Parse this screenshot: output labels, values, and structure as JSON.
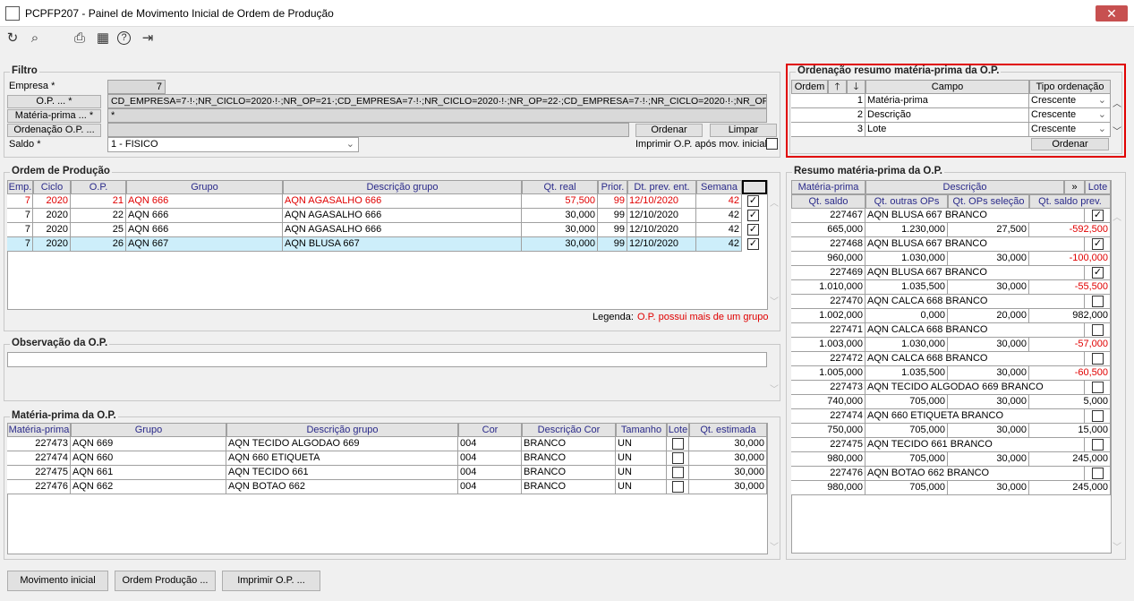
{
  "window": {
    "title": "PCPFP207 - Painel de Movimento Inicial de Ordem de Produção",
    "close": "✕"
  },
  "toolbar": {
    "refresh": "↻",
    "search": "⌕",
    "print": "⎙",
    "calendar": "▦",
    "help": "?",
    "exit": "⇥"
  },
  "filtro": {
    "legend": "Filtro",
    "empresa_label": "Empresa *",
    "empresa_value": "7",
    "op_button": "O.P. ... *",
    "op_value": "CD_EMPRESA=7·!·;NR_CICLO=2020·!·;NR_OP=21·;CD_EMPRESA=7·!·;NR_CICLO=2020·!·;NR_OP=22·;CD_EMPRESA=7·!·;NR_CICLO=2020·!·;NR_OP=23·;CD",
    "mp_button": "Matéria-prima ... *",
    "mp_value": "*",
    "ord_button": "Ordenação O.P. ...",
    "ord_value": "",
    "ordenar": "Ordenar",
    "limpar": "Limpar",
    "saldo_label": "Saldo *",
    "saldo_value": "1 - FISICO",
    "imprimir_label": "Imprimir O.P. após mov. inicial",
    "imprimir_checked": false
  },
  "ordenacao": {
    "legend": "Ordenação resumo matéria-prima da O.P.",
    "headers": [
      "Ordem",
      "🡑",
      "🡓",
      "Campo",
      "Tipo ordenação"
    ],
    "rows": [
      {
        "ordem": "1",
        "campo": "Matéria-prima",
        "tipo": "Crescente"
      },
      {
        "ordem": "2",
        "campo": "Descrição",
        "tipo": "Crescente"
      },
      {
        "ordem": "3",
        "campo": "Lote",
        "tipo": "Crescente"
      }
    ],
    "ordenar": "Ordenar"
  },
  "op": {
    "legend": "Ordem de Produção",
    "headers": [
      "Emp.",
      "Ciclo",
      "O.P.",
      "Grupo",
      "Descrição grupo",
      "Qt. real",
      "Prior.",
      "Dt. prev. ent.",
      "Semana"
    ],
    "rows": [
      {
        "cells": [
          "7",
          "2020",
          "21",
          "AQN 666",
          "AQN AGASALHO 666",
          "57,500",
          "99",
          "12/10/2020",
          "42"
        ],
        "checked": true,
        "red": true
      },
      {
        "cells": [
          "7",
          "2020",
          "22",
          "AQN 666",
          "AQN AGASALHO 666",
          "30,000",
          "99",
          "12/10/2020",
          "42"
        ],
        "checked": true
      },
      {
        "cells": [
          "7",
          "2020",
          "25",
          "AQN 666",
          "AQN AGASALHO 666",
          "30,000",
          "99",
          "12/10/2020",
          "42"
        ],
        "checked": true
      },
      {
        "cells": [
          "7",
          "2020",
          "26",
          "AQN 667",
          "AQN BLUSA 667",
          "30,000",
          "99",
          "12/10/2020",
          "42"
        ],
        "checked": true,
        "selected": true
      }
    ],
    "legenda_label": "Legenda:",
    "legenda_text": "O.P. possui mais de um grupo",
    "legend_color": "#e00000"
  },
  "obs": {
    "legend": "Observação da O.P.",
    "value": ""
  },
  "mp": {
    "legend": "Matéria-prima da O.P.",
    "headers": [
      "Matéria-prima",
      "Grupo",
      "Descrição grupo",
      "Cor",
      "Descrição Cor",
      "Tamanho",
      "Lote",
      "Qt. estimada"
    ],
    "rows": [
      {
        "cells": [
          "227473",
          "AQN 669",
          "AQN TECIDO ALGODAO 669",
          "004",
          "BRANCO",
          "UN"
        ],
        "lote": false,
        "qt": "30,000"
      },
      {
        "cells": [
          "227474",
          "AQN 660",
          "AQN 660 ETIQUETA",
          "004",
          "BRANCO",
          "UN"
        ],
        "lote": false,
        "qt": "30,000"
      },
      {
        "cells": [
          "227475",
          "AQN 661",
          "AQN TECIDO 661",
          "004",
          "BRANCO",
          "UN"
        ],
        "lote": false,
        "qt": "30,000"
      },
      {
        "cells": [
          "227476",
          "AQN 662",
          "AQN BOTAO 662",
          "004",
          "BRANCO",
          "UN"
        ],
        "lote": false,
        "qt": "30,000"
      }
    ]
  },
  "resumo": {
    "legend": "Resumo matéria-prima da O.P.",
    "headers1": [
      "Matéria-prima",
      "Descrição",
      "»",
      "Lote"
    ],
    "headers2": [
      "Qt. saldo",
      "Qt. outras OPs",
      "Qt. OPs seleção",
      "Qt. saldo prev."
    ],
    "rows": [
      {
        "mp": "227467",
        "desc": "AQN BLUSA 667 BRANCO",
        "lote": true,
        "vals": [
          "665,000",
          "1.230,000",
          "27,500",
          "-592,500"
        ],
        "neg": true
      },
      {
        "mp": "227468",
        "desc": "AQN BLUSA 667 BRANCO",
        "lote": true,
        "vals": [
          "960,000",
          "1.030,000",
          "30,000",
          "-100,000"
        ],
        "neg": true
      },
      {
        "mp": "227469",
        "desc": "AQN BLUSA 667 BRANCO",
        "lote": true,
        "vals": [
          "1.010,000",
          "1.035,500",
          "30,000",
          "-55,500"
        ],
        "neg": true
      },
      {
        "mp": "227470",
        "desc": "AQN CALCA 668 BRANCO",
        "lote": false,
        "vals": [
          "1.002,000",
          "0,000",
          "20,000",
          "982,000"
        ]
      },
      {
        "mp": "227471",
        "desc": "AQN CALCA 668 BRANCO",
        "lote": false,
        "vals": [
          "1.003,000",
          "1.030,000",
          "30,000",
          "-57,000"
        ],
        "neg": true
      },
      {
        "mp": "227472",
        "desc": "AQN CALCA 668 BRANCO",
        "lote": false,
        "vals": [
          "1.005,000",
          "1.035,500",
          "30,000",
          "-60,500"
        ],
        "neg": true
      },
      {
        "mp": "227473",
        "desc": "AQN TECIDO ALGODAO 669 BRANCO",
        "lote": false,
        "vals": [
          "740,000",
          "705,000",
          "30,000",
          "5,000"
        ]
      },
      {
        "mp": "227474",
        "desc": "AQN 660 ETIQUETA BRANCO",
        "lote": false,
        "vals": [
          "750,000",
          "705,000",
          "30,000",
          "15,000"
        ]
      },
      {
        "mp": "227475",
        "desc": "AQN TECIDO 661 BRANCO",
        "lote": false,
        "vals": [
          "980,000",
          "705,000",
          "30,000",
          "245,000"
        ]
      },
      {
        "mp": "227476",
        "desc": "AQN BOTAO 662 BRANCO",
        "lote": false,
        "vals": [
          "980,000",
          "705,000",
          "30,000",
          "245,000"
        ]
      }
    ]
  },
  "footer": {
    "movimento": "Movimento inicial",
    "ordem": "Ordem Produção ...",
    "imprimir": "Imprimir O.P. ..."
  }
}
